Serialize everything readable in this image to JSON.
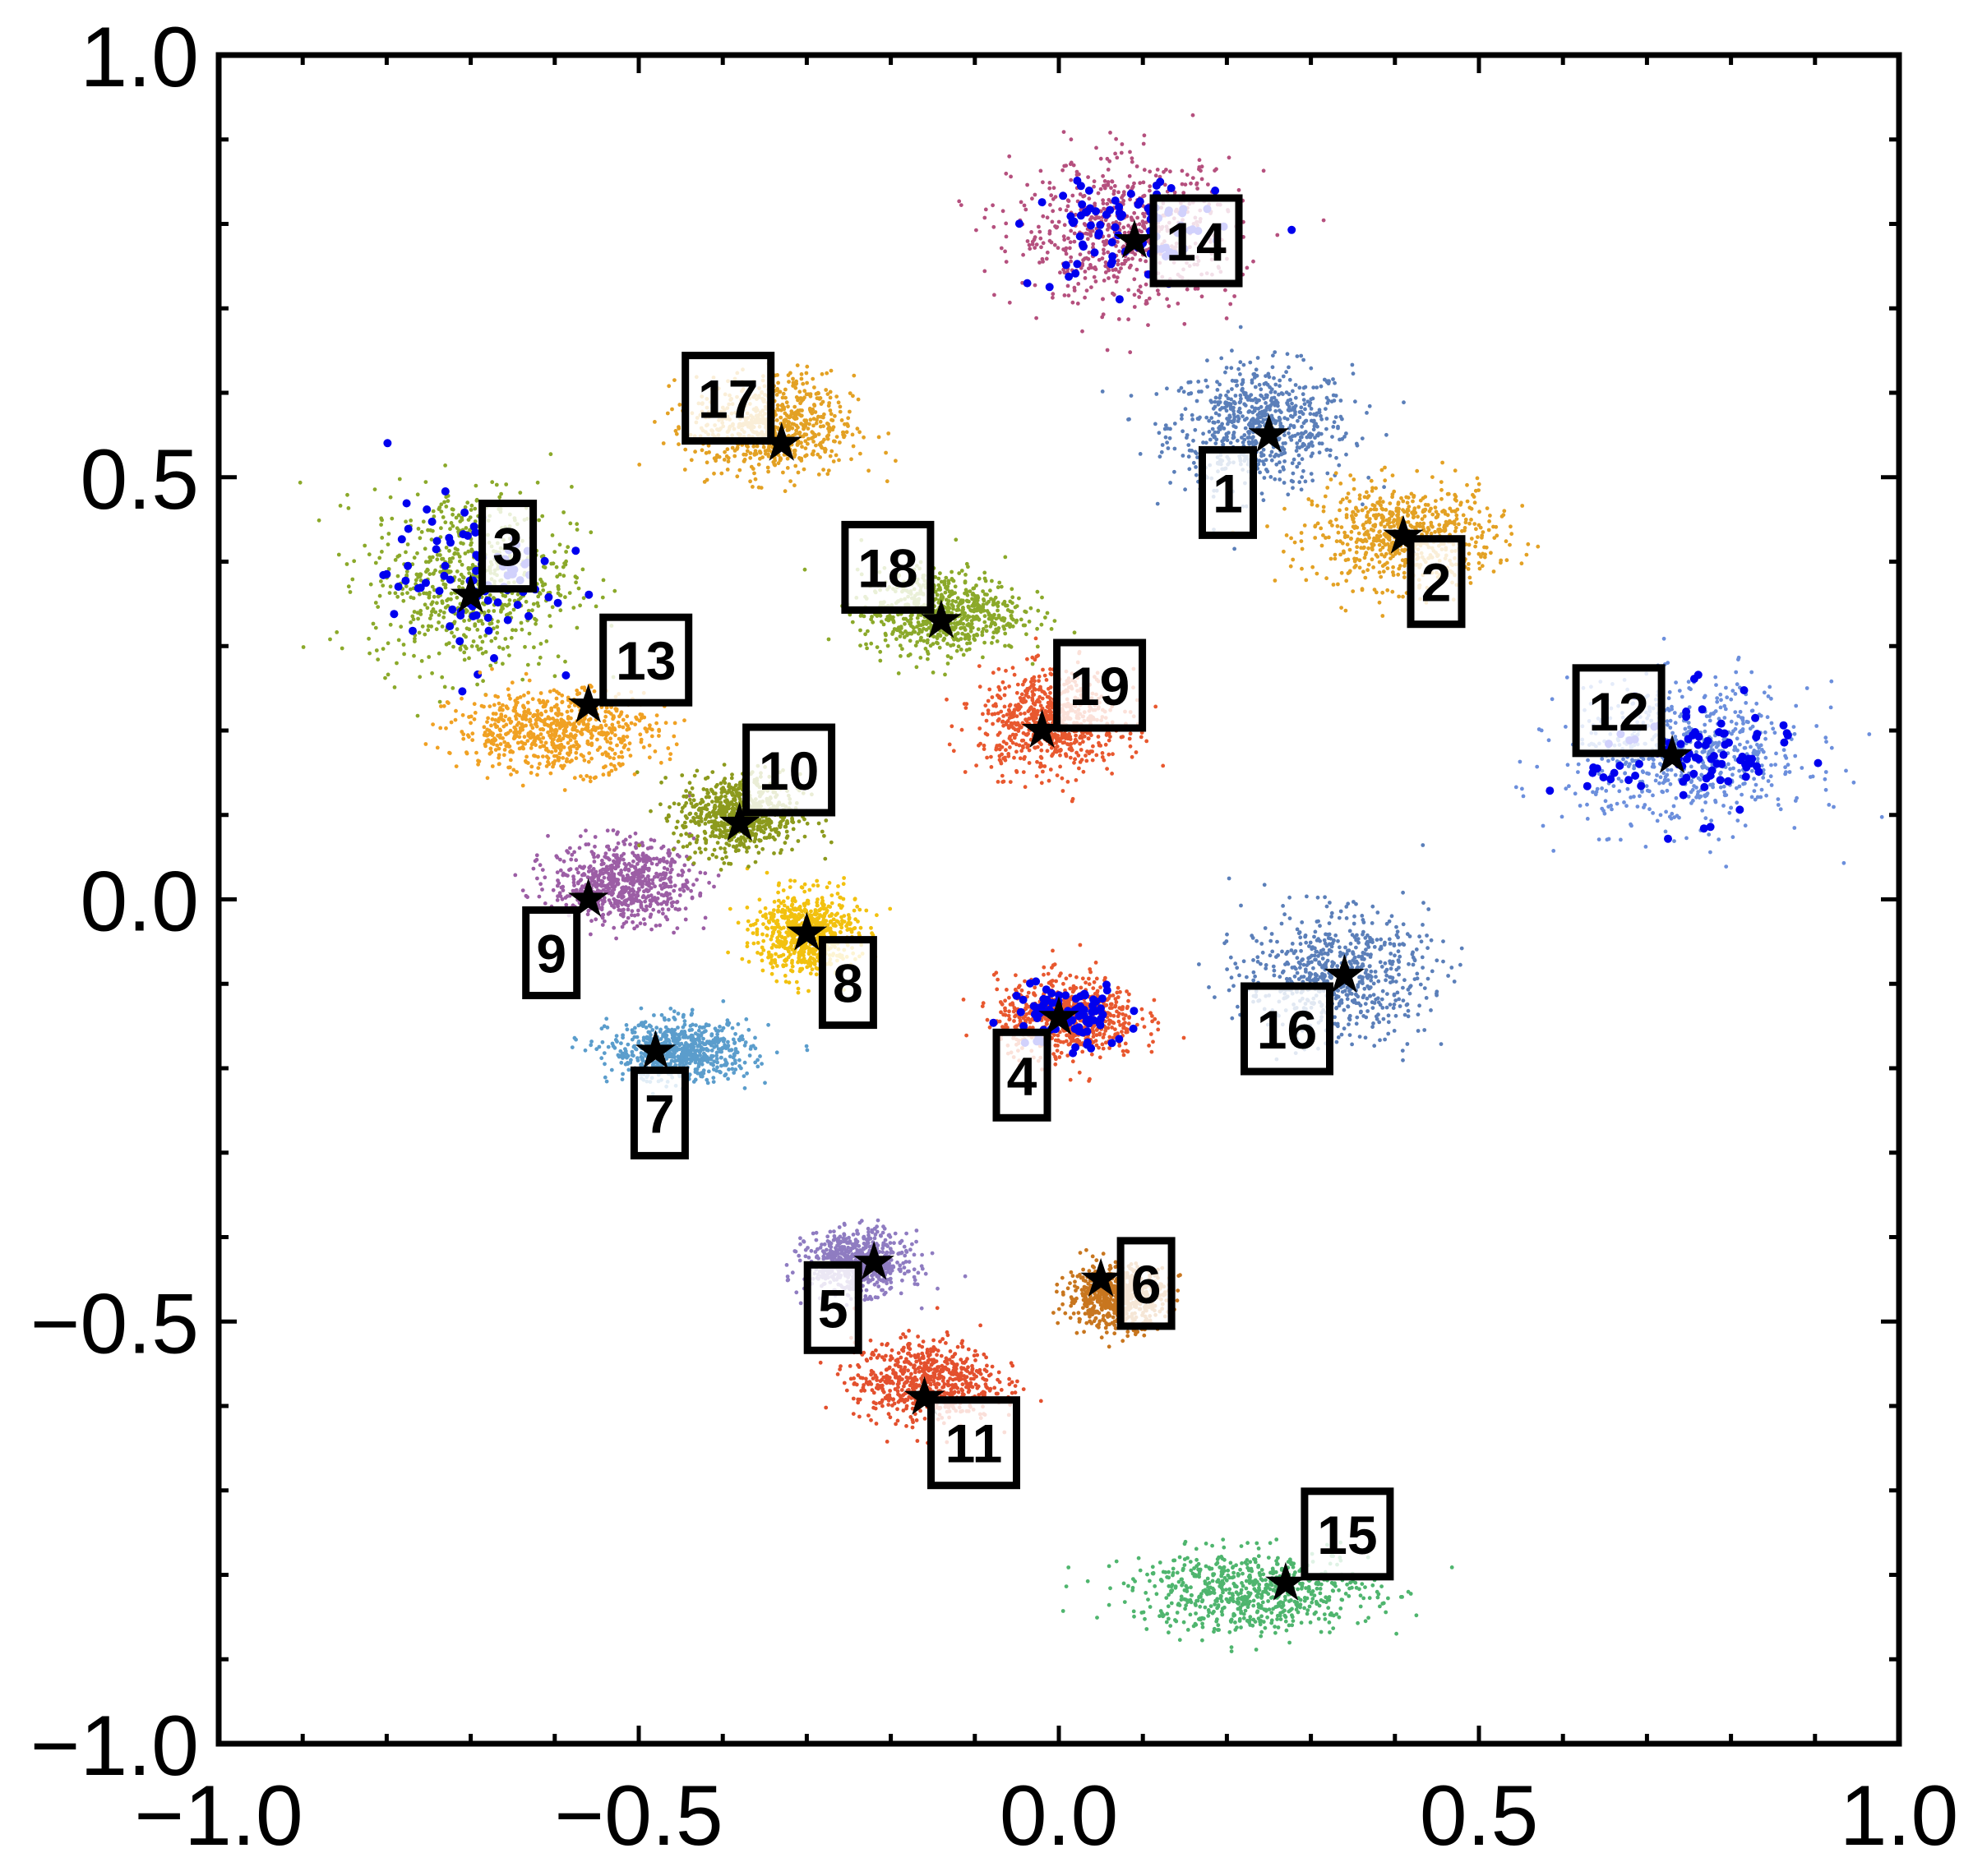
{
  "chart_data": {
    "type": "scatter",
    "title": "",
    "xlabel": "",
    "ylabel": "",
    "xlim": [
      -1.0,
      1.0
    ],
    "ylim": [
      -1.0,
      1.0
    ],
    "grid": false,
    "legend": "none",
    "x_ticks": [
      "−1.0",
      "−0.5",
      "0.0",
      "0.5",
      "1.0"
    ],
    "y_ticks": [
      "−1.0",
      "−0.5",
      "0.0",
      "0.5",
      "1.0"
    ],
    "marker_color": "#000000",
    "highlight_color": "#0000ee",
    "clusters": [
      {
        "label": "1",
        "star": [
          0.25,
          0.55
        ],
        "color": "#5b7fb9",
        "center": [
          0.24,
          0.56
        ],
        "spread": [
          0.09,
          0.06
        ]
      },
      {
        "label": "2",
        "star": [
          0.41,
          0.43
        ],
        "color": "#e3a124",
        "center": [
          0.41,
          0.43
        ],
        "spread": [
          0.09,
          0.05
        ]
      },
      {
        "label": "3",
        "star": [
          -0.7,
          0.36
        ],
        "color": "#8ba92a",
        "center": [
          -0.7,
          0.38
        ],
        "spread": [
          0.1,
          0.09
        ]
      },
      {
        "label": "4",
        "star": [
          0.0,
          -0.14
        ],
        "color": "#e8582f",
        "center": [
          0.01,
          -0.14
        ],
        "spread": [
          0.07,
          0.04
        ]
      },
      {
        "label": "5",
        "star": [
          -0.22,
          -0.43
        ],
        "color": "#8f7cc1",
        "center": [
          -0.24,
          -0.43
        ],
        "spread": [
          0.05,
          0.03
        ]
      },
      {
        "label": "6",
        "star": [
          0.05,
          -0.45
        ],
        "color": "#c8761f",
        "center": [
          0.07,
          -0.47
        ],
        "spread": [
          0.05,
          0.03
        ]
      },
      {
        "label": "7",
        "star": [
          -0.48,
          -0.18
        ],
        "color": "#5b9dcc",
        "center": [
          -0.45,
          -0.18
        ],
        "spread": [
          0.07,
          0.03
        ]
      },
      {
        "label": "8",
        "star": [
          -0.3,
          -0.04
        ],
        "color": "#f2c10f",
        "center": [
          -0.3,
          -0.04
        ],
        "spread": [
          0.05,
          0.04
        ]
      },
      {
        "label": "9",
        "star": [
          -0.56,
          0.0
        ],
        "color": "#9c5ea5",
        "center": [
          -0.52,
          0.02
        ],
        "spread": [
          0.07,
          0.04
        ]
      },
      {
        "label": "10",
        "star": [
          -0.38,
          0.09
        ],
        "color": "#8c9a1d",
        "center": [
          -0.38,
          0.1
        ],
        "spread": [
          0.06,
          0.04
        ]
      },
      {
        "label": "11",
        "star": [
          -0.16,
          -0.59
        ],
        "color": "#e3502e",
        "center": [
          -0.16,
          -0.57
        ],
        "spread": [
          0.07,
          0.04
        ]
      },
      {
        "label": "12",
        "star": [
          0.73,
          0.17
        ],
        "color": "#6c8fdc",
        "center": [
          0.75,
          0.17
        ],
        "spread": [
          0.12,
          0.07
        ]
      },
      {
        "label": "13",
        "star": [
          -0.56,
          0.23
        ],
        "color": "#f0a123",
        "center": [
          -0.6,
          0.2
        ],
        "spread": [
          0.1,
          0.04
        ]
      },
      {
        "label": "14",
        "star": [
          0.09,
          0.78
        ],
        "color": "#b5507e",
        "center": [
          0.08,
          0.79
        ],
        "spread": [
          0.11,
          0.07
        ]
      },
      {
        "label": "15",
        "star": [
          0.27,
          -0.81
        ],
        "color": "#4fb56e",
        "center": [
          0.23,
          -0.82
        ],
        "spread": [
          0.12,
          0.04
        ]
      },
      {
        "label": "16",
        "star": [
          0.34,
          -0.09
        ],
        "color": "#5b7fb9",
        "center": [
          0.33,
          -0.09
        ],
        "spread": [
          0.09,
          0.06
        ]
      },
      {
        "label": "17",
        "star": [
          -0.33,
          0.54
        ],
        "color": "#e3a124",
        "center": [
          -0.34,
          0.56
        ],
        "spread": [
          0.08,
          0.05
        ]
      },
      {
        "label": "18",
        "star": [
          -0.14,
          0.33
        ],
        "color": "#8ba92a",
        "center": [
          -0.14,
          0.34
        ],
        "spread": [
          0.08,
          0.04
        ]
      },
      {
        "label": "19",
        "star": [
          -0.02,
          0.2
        ],
        "color": "#e8582f",
        "center": [
          -0.01,
          0.21
        ],
        "spread": [
          0.07,
          0.05
        ]
      }
    ]
  }
}
